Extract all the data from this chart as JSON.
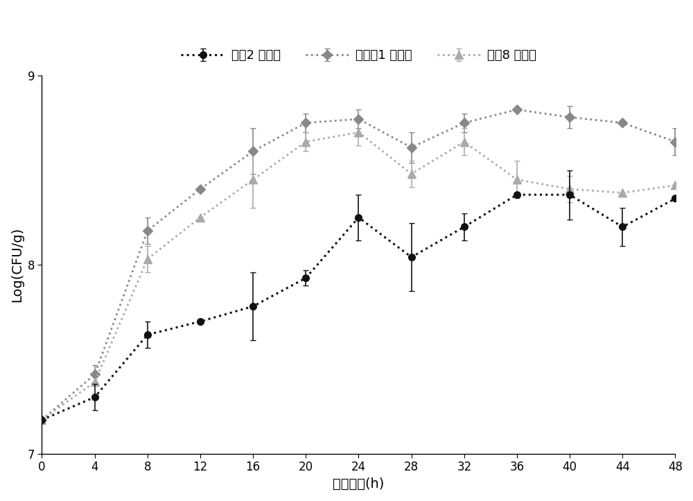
{
  "x": [
    0,
    4,
    8,
    12,
    16,
    20,
    24,
    28,
    32,
    36,
    40,
    44,
    48
  ],
  "series": [
    {
      "label": "对比2 活菌数",
      "y": [
        7.18,
        7.3,
        7.63,
        7.7,
        7.78,
        7.93,
        8.25,
        8.04,
        8.2,
        8.37,
        8.37,
        8.2,
        8.35
      ],
      "yerr": [
        0.0,
        0.07,
        0.07,
        0.0,
        0.18,
        0.04,
        0.12,
        0.18,
        0.07,
        0.0,
        0.13,
        0.1,
        0.0
      ],
      "color": "#111111",
      "linestyle": "dotted",
      "marker": "o",
      "markersize": 7,
      "linewidth": 2.2,
      "zorder": 3
    },
    {
      "label": "实施入1 活菌数",
      "y": [
        7.18,
        7.42,
        8.18,
        8.4,
        8.6,
        8.75,
        8.77,
        8.62,
        8.75,
        8.82,
        8.78,
        8.75,
        8.65
      ],
      "yerr": [
        0.0,
        0.05,
        0.07,
        0.0,
        0.12,
        0.05,
        0.05,
        0.08,
        0.05,
        0.0,
        0.06,
        0.0,
        0.07
      ],
      "color": "#888888",
      "linestyle": "dotted",
      "marker": "D",
      "markersize": 7,
      "linewidth": 2.0,
      "zorder": 2
    },
    {
      "label": "对比8 活菌数",
      "y": [
        7.18,
        7.38,
        8.03,
        8.25,
        8.45,
        8.65,
        8.7,
        8.48,
        8.65,
        8.45,
        8.4,
        8.38,
        8.42
      ],
      "yerr": [
        0.0,
        0.0,
        0.07,
        0.0,
        0.15,
        0.05,
        0.07,
        0.07,
        0.07,
        0.1,
        0.07,
        0.0,
        0.0
      ],
      "color": "#aaaaaa",
      "linestyle": "dotted",
      "marker": "^",
      "markersize": 8,
      "linewidth": 2.0,
      "zorder": 2
    }
  ],
  "xlabel": "发酵时间(h)",
  "ylabel": "Log(CFU/g)",
  "xlim": [
    0,
    48
  ],
  "ylim": [
    7.0,
    9.0
  ],
  "xticks": [
    0,
    4,
    8,
    12,
    16,
    20,
    24,
    28,
    32,
    36,
    40,
    44,
    48
  ],
  "yticks": [
    7,
    8,
    9
  ],
  "legend_ncol": 3,
  "figsize": [
    10.0,
    7.23
  ],
  "dpi": 100,
  "background_color": "#ffffff",
  "tick_fontsize": 12,
  "label_fontsize": 14,
  "legend_fontsize": 13
}
